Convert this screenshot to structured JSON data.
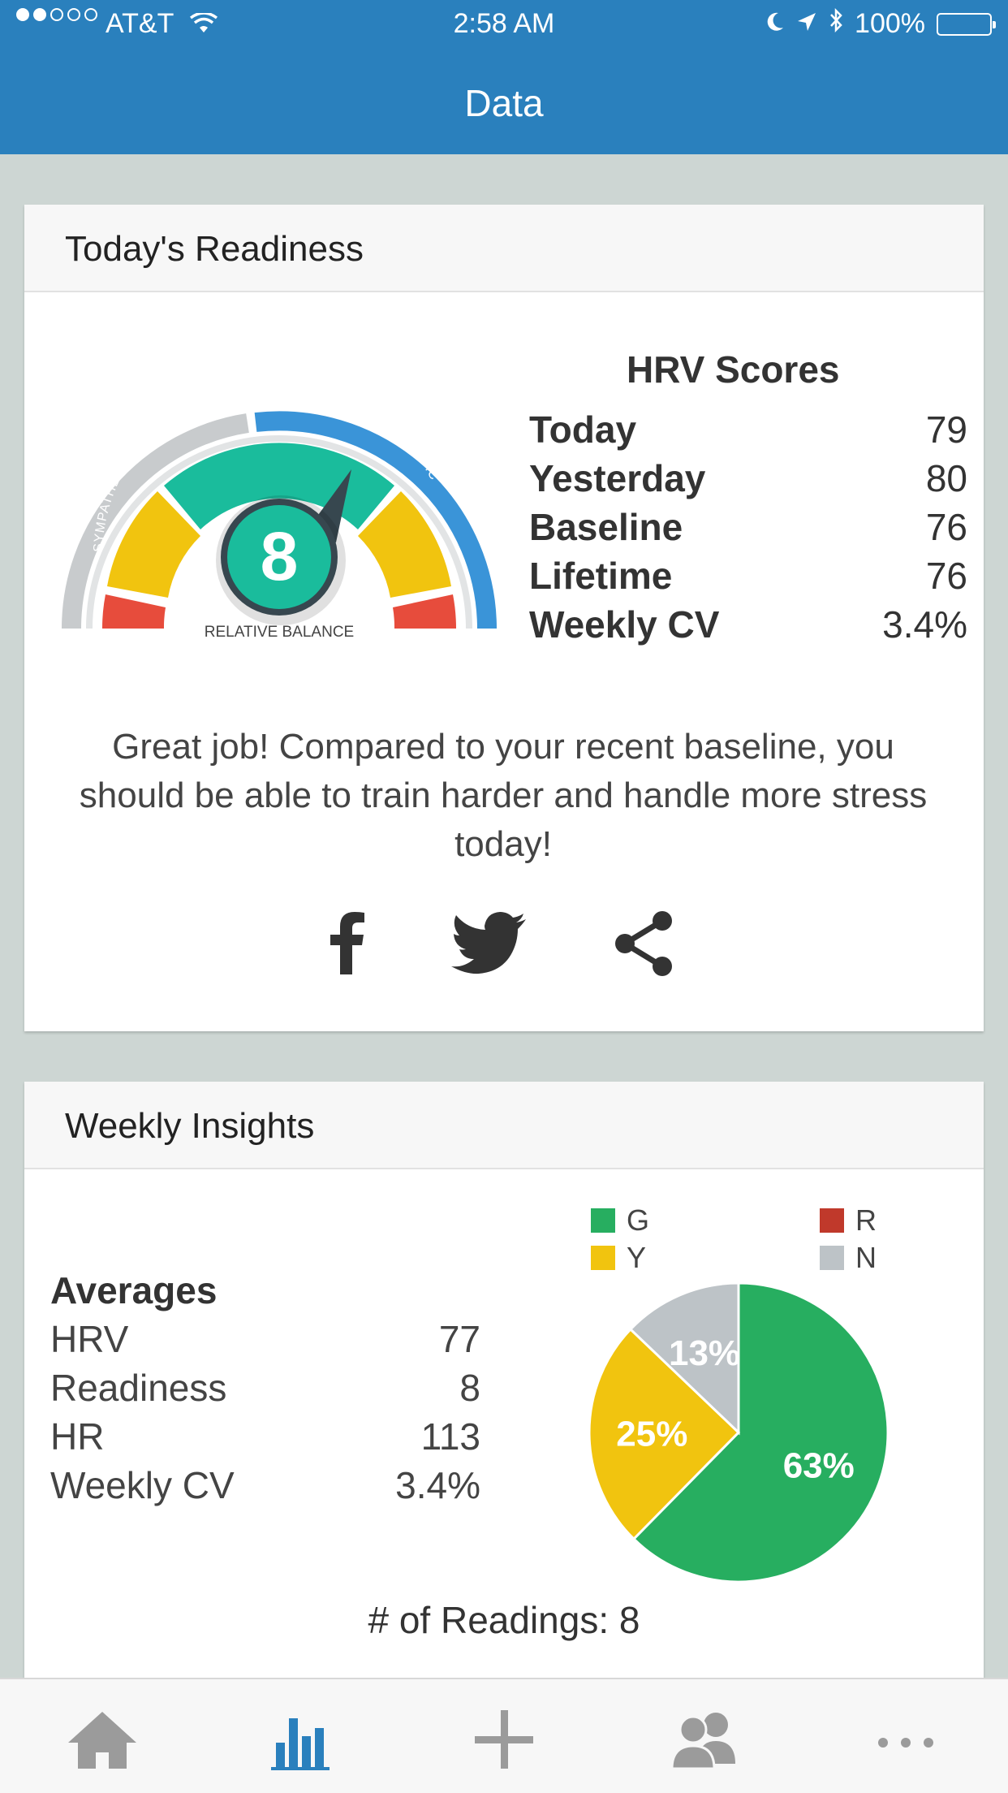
{
  "status_bar": {
    "carrier": "AT&T",
    "time": "2:58 AM",
    "battery": "100%"
  },
  "nav": {
    "title": "Data"
  },
  "readiness": {
    "header": "Today's Readiness",
    "gauge": {
      "value": "8",
      "label": "RELATIVE BALANCE",
      "left_arc_label": "SYMPATHETIC",
      "right_arc_label": "PARASYMPATHETIC"
    },
    "hrv_scores": {
      "title": "HRV Scores",
      "rows": [
        {
          "label": "Today",
          "value": "79"
        },
        {
          "label": "Yesterday",
          "value": "80"
        },
        {
          "label": "Baseline",
          "value": "76"
        },
        {
          "label": "Lifetime",
          "value": "76"
        },
        {
          "label": "Weekly CV",
          "value": "3.4%"
        }
      ]
    },
    "message": "Great job! Compared to your recent baseline, you should be able to train harder and handle more stress today!",
    "share_icons": [
      "facebook-icon",
      "twitter-icon",
      "share-icon"
    ]
  },
  "weekly": {
    "header": "Weekly Insights",
    "averages": {
      "title": "Averages",
      "rows": [
        {
          "label": "HRV",
          "value": "77"
        },
        {
          "label": "Readiness",
          "value": "8"
        },
        {
          "label": "HR",
          "value": "113"
        },
        {
          "label": "Weekly CV",
          "value": "3.4%"
        }
      ]
    },
    "legend": [
      {
        "key": "G",
        "color": "#27ae60"
      },
      {
        "key": "R",
        "color": "#c0392b"
      },
      {
        "key": "Y",
        "color": "#f1c40f"
      },
      {
        "key": "N",
        "color": "#bdc3c7"
      }
    ],
    "readings_label": "# of Readings: 8"
  },
  "chart_data": {
    "type": "pie",
    "categories": [
      "G",
      "Y",
      "N",
      "R"
    ],
    "values": [
      63,
      25,
      13,
      0
    ],
    "labels": [
      "63%",
      "25%",
      "13%",
      ""
    ],
    "colors": [
      "#27ae60",
      "#f1c40f",
      "#bdc3c7",
      "#c0392b"
    ]
  },
  "tab_bar": {
    "tabs": [
      "home-icon",
      "data-icon",
      "add-icon",
      "community-icon",
      "more-icon"
    ],
    "active": "data-icon",
    "active_color": "#2a80bd",
    "inactive_color": "#9b9b9b"
  }
}
